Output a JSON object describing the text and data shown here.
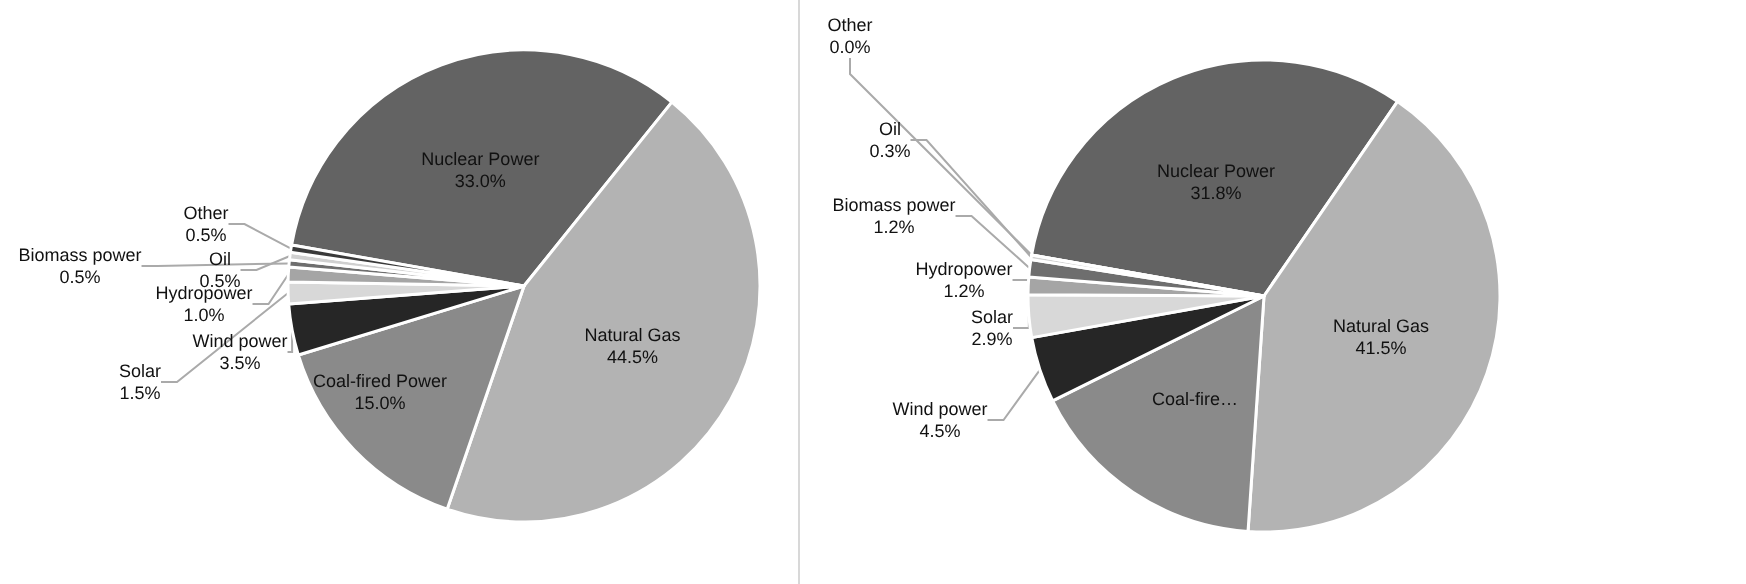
{
  "chart_data": [
    {
      "type": "pie",
      "categories": [
        "Nuclear Power",
        "Natural Gas",
        "Coal-fired Power",
        "Wind power",
        "Solar",
        "Hydropower",
        "Biomass power",
        "Oil",
        "Other"
      ],
      "values": [
        33.0,
        44.5,
        15.0,
        3.5,
        1.5,
        1.0,
        0.5,
        0.5,
        0.5
      ],
      "colors": [
        "#636363",
        "#b3b3b3",
        "#8a8a8a",
        "#262626",
        "#d8d8d8",
        "#a5a5a5",
        "#6e6e6e",
        "#d0d0d0",
        "#3a3a3a"
      ],
      "value_labels": [
        "33.0%",
        "44.5%",
        "15.0%",
        "3.5%",
        "1.5%",
        "1.0%",
        "0.5%",
        "0.5%",
        "0.5%"
      ]
    },
    {
      "type": "pie",
      "categories": [
        "Nuclear Power",
        "Natural Gas",
        "Coal-fire…",
        "Wind power",
        "Solar",
        "Hydropower",
        "Biomass power",
        "Oil",
        "Other"
      ],
      "values": [
        31.8,
        41.5,
        16.6,
        4.5,
        2.9,
        1.2,
        1.2,
        0.3,
        0.0
      ],
      "colors": [
        "#636363",
        "#b3b3b3",
        "#8a8a8a",
        "#262626",
        "#d8d8d8",
        "#a5a5a5",
        "#6e6e6e",
        "#d0d0d0",
        "#3a3a3a"
      ],
      "value_labels": [
        "31.8%",
        "41.5%",
        null,
        "4.5%",
        "2.9%",
        "1.2%",
        "1.2%",
        "0.3%",
        "0.0%"
      ]
    }
  ]
}
